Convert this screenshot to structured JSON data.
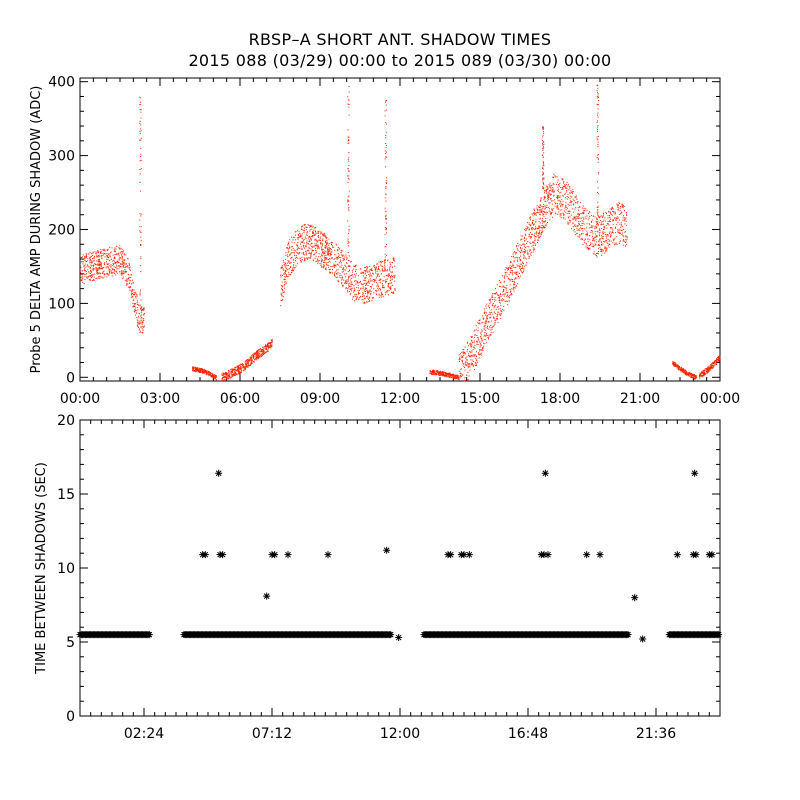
{
  "header": {
    "title_line1": "RBSP–A SHORT ANT. SHADOW TIMES",
    "title_line2": "2015 088 (03/29) 00:00 to 2015 089 (03/30) 00:00"
  },
  "colors": {
    "top_points": "#ff2200",
    "bottom_points": "#000000",
    "axes": "#000000"
  },
  "chart_data": [
    {
      "type": "scatter",
      "title": "",
      "ylabel": "Probe 5 DELTA AMP DURING SHADOW (ADC)",
      "xlabel": "",
      "x_unit": "hours",
      "xlim": [
        0,
        24
      ],
      "ylim": [
        -5,
        405
      ],
      "x_tick_values": [
        0,
        3,
        6,
        9,
        12,
        15,
        18,
        21,
        24
      ],
      "x_tick_labels": [
        "00:00",
        "03:00",
        "06:00",
        "09:00",
        "12:00",
        "15:00",
        "18:00",
        "21:00",
        "00:00"
      ],
      "y_tick_values": [
        0,
        100,
        200,
        300,
        400
      ],
      "y_tick_labels": [
        "0",
        "100",
        "200",
        "300",
        "400"
      ],
      "grid": false,
      "marker_color": "#ff2200",
      "segments": [
        {
          "x": [
            0.0,
            0.3,
            0.6,
            0.9,
            1.2,
            1.5,
            1.8,
            2.0,
            2.2,
            2.4
          ],
          "y": [
            145,
            150,
            152,
            155,
            158,
            160,
            140,
            110,
            80,
            75
          ],
          "spread": 20
        },
        {
          "x": [
            4.2,
            4.5,
            4.8,
            5.0,
            5.1
          ],
          "y": [
            12,
            10,
            6,
            2,
            0
          ],
          "spread": 3
        },
        {
          "x": [
            5.3,
            5.6,
            6.0,
            6.3,
            6.6,
            7.0,
            7.2
          ],
          "y": [
            0,
            5,
            12,
            20,
            30,
            40,
            48
          ],
          "spread": 6
        },
        {
          "x": [
            7.5,
            7.8,
            8.2,
            8.6,
            9.0,
            9.4,
            9.8,
            10.2,
            10.6,
            11.0,
            11.4,
            11.8
          ],
          "y": [
            120,
            160,
            180,
            185,
            175,
            165,
            150,
            130,
            125,
            130,
            135,
            140
          ],
          "spread": 25
        },
        {
          "x": [
            13.1,
            13.5,
            13.9,
            14.2
          ],
          "y": [
            8,
            6,
            3,
            0
          ],
          "spread": 3
        },
        {
          "x": [
            14.2,
            14.6,
            15.0,
            15.4,
            15.8,
            16.2,
            16.6,
            17.0,
            17.4,
            17.8,
            18.2,
            18.6,
            19.0,
            19.4,
            19.8,
            20.2,
            20.5
          ],
          "y": [
            5,
            25,
            55,
            85,
            110,
            140,
            170,
            200,
            230,
            250,
            240,
            220,
            200,
            190,
            200,
            210,
            205
          ],
          "spread": 28
        },
        {
          "x": [
            22.2,
            22.5,
            22.8,
            23.1
          ],
          "y": [
            20,
            12,
            5,
            0
          ],
          "spread": 3
        },
        {
          "x": [
            23.2,
            23.5,
            23.8,
            24.0
          ],
          "y": [
            2,
            10,
            20,
            28
          ],
          "spread": 4
        }
      ],
      "spikes": [
        {
          "x": 2.25,
          "y_from": 80,
          "y_to": 380
        },
        {
          "x": 10.05,
          "y_from": 150,
          "y_to": 395
        },
        {
          "x": 11.45,
          "y_from": 150,
          "y_to": 380
        },
        {
          "x": 17.35,
          "y_from": 250,
          "y_to": 340
        },
        {
          "x": 19.4,
          "y_from": 200,
          "y_to": 400
        }
      ]
    },
    {
      "type": "scatter",
      "title": "",
      "ylabel": "TIME BETWEEN SHADOWS (SEC)",
      "xlabel": "",
      "x_unit": "hours",
      "xlim": [
        0,
        24
      ],
      "ylim": [
        0,
        20
      ],
      "x_tick_values": [
        2.4,
        7.2,
        12.0,
        16.8,
        21.6
      ],
      "x_tick_labels": [
        "02:24",
        "07:12",
        "12:00",
        "16:48",
        "21:36"
      ],
      "y_tick_values": [
        0,
        5,
        10,
        15,
        20
      ],
      "y_tick_labels": [
        "0",
        "5",
        "10",
        "15",
        "20"
      ],
      "grid": false,
      "marker": "asterisk",
      "marker_color": "#000000",
      "baseline_value": 5.5,
      "baseline_ranges": [
        [
          0.0,
          2.6
        ],
        [
          3.9,
          11.7
        ],
        [
          12.9,
          20.6
        ],
        [
          22.1,
          24.0
        ]
      ],
      "points": [
        {
          "x": 4.6,
          "y": 10.9
        },
        {
          "x": 4.7,
          "y": 10.9
        },
        {
          "x": 5.2,
          "y": 16.4
        },
        {
          "x": 5.25,
          "y": 10.9
        },
        {
          "x": 5.35,
          "y": 10.9
        },
        {
          "x": 7.0,
          "y": 8.1
        },
        {
          "x": 7.2,
          "y": 10.9
        },
        {
          "x": 7.3,
          "y": 10.9
        },
        {
          "x": 7.8,
          "y": 10.9
        },
        {
          "x": 9.3,
          "y": 10.9
        },
        {
          "x": 11.5,
          "y": 11.2
        },
        {
          "x": 11.95,
          "y": 5.3
        },
        {
          "x": 13.8,
          "y": 10.9
        },
        {
          "x": 13.9,
          "y": 10.9
        },
        {
          "x": 14.3,
          "y": 10.9
        },
        {
          "x": 14.4,
          "y": 10.9
        },
        {
          "x": 14.6,
          "y": 10.9
        },
        {
          "x": 17.3,
          "y": 10.9
        },
        {
          "x": 17.4,
          "y": 10.9
        },
        {
          "x": 17.45,
          "y": 16.4
        },
        {
          "x": 17.55,
          "y": 10.9
        },
        {
          "x": 19.0,
          "y": 10.9
        },
        {
          "x": 19.5,
          "y": 10.9
        },
        {
          "x": 20.8,
          "y": 8.0
        },
        {
          "x": 21.1,
          "y": 5.2
        },
        {
          "x": 22.4,
          "y": 10.9
        },
        {
          "x": 23.0,
          "y": 10.9
        },
        {
          "x": 23.05,
          "y": 16.4
        },
        {
          "x": 23.1,
          "y": 10.9
        },
        {
          "x": 23.6,
          "y": 10.9
        },
        {
          "x": 23.7,
          "y": 10.9
        }
      ]
    }
  ]
}
